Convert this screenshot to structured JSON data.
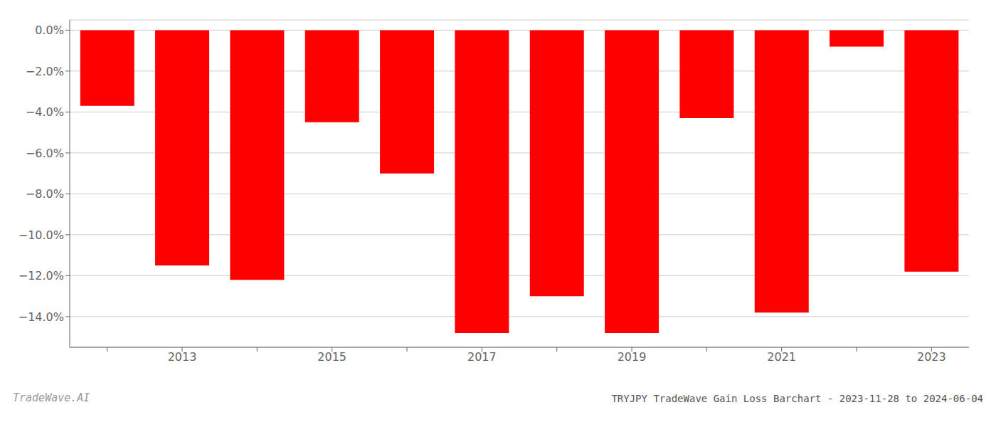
{
  "chart_data": {
    "type": "bar",
    "title": "TRYJPY TradeWave Gain Loss Barchart - 2023-11-28 to 2024-06-04",
    "annotations": [
      "TradeWave.AI"
    ],
    "categories": [
      null,
      "2013",
      null,
      "2015",
      null,
      "2017",
      null,
      "2019",
      null,
      "2021",
      null,
      "2023"
    ],
    "values": [
      -3.7,
      -11.5,
      -12.2,
      -4.5,
      -7.0,
      -14.8,
      -13.0,
      -14.8,
      -4.3,
      -13.8,
      -0.8,
      -11.8
    ],
    "color": "#ff0000",
    "ylim": [
      -15.5,
      0.5
    ],
    "yticks": [
      {
        "value": 0.0,
        "label": "0.0%"
      },
      {
        "value": -2.0,
        "label": "−2.0%"
      },
      {
        "value": -4.0,
        "label": "−4.0%"
      },
      {
        "value": -6.0,
        "label": "−6.0%"
      },
      {
        "value": -8.0,
        "label": "−8.0%"
      },
      {
        "value": -10.0,
        "label": "−10.0%"
      },
      {
        "value": -12.0,
        "label": "−12.0%"
      },
      {
        "value": -14.0,
        "label": "−14.0%"
      }
    ],
    "grid": true
  }
}
